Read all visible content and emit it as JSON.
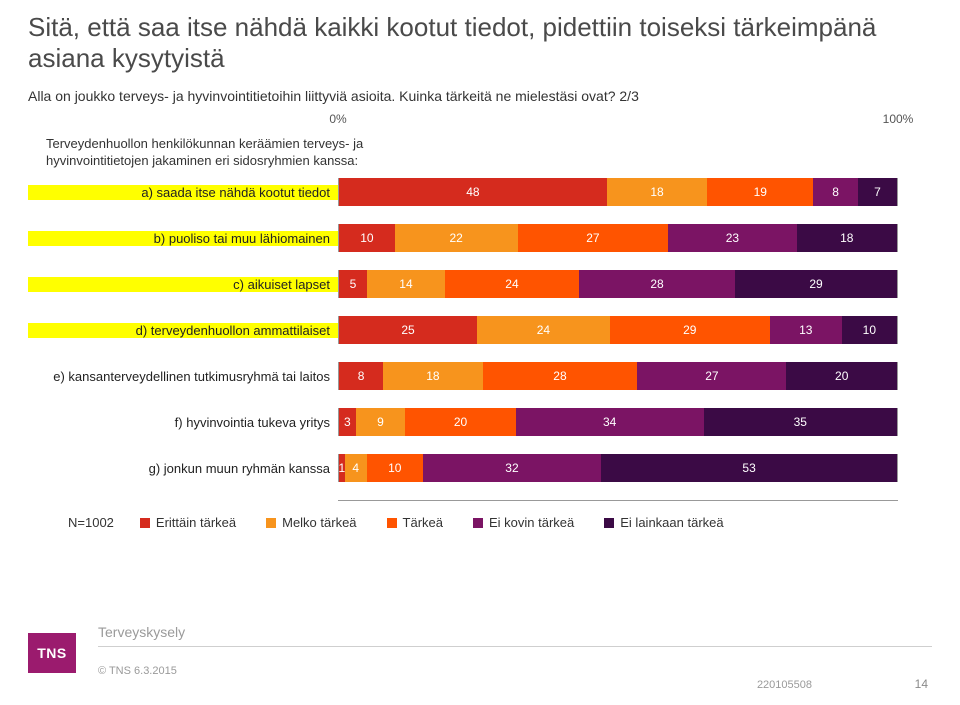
{
  "title": "Sitä, että saa itse nähdä kaikki kootut tiedot, pidettiin toiseksi tärkeimpänä asiana kysytyistä",
  "subtitle": "Alla on joukko terveys- ja hyvinvointitietoihin liittyviä asioita. Kuinka tärkeitä ne mielestäsi ovat? 2/3",
  "axis": {
    "min_label": "0%",
    "max_label": "100%"
  },
  "group_text": "Terveydenhuollon henkilökunnan keräämien terveys- ja hyvinvointitietojen jakaminen eri sidosryhmien kanssa:",
  "colors": {
    "c1": "#d52b1e",
    "c2": "#f7941d",
    "c3": "#ff5400",
    "c4": "#7b1464",
    "c5": "#3b0a45",
    "bg": "#ffffff",
    "grid": "#999999"
  },
  "rows": [
    {
      "label": "a) saada itse nähdä kootut tiedot",
      "highlighted": true,
      "values": [
        48,
        18,
        19,
        8,
        7
      ]
    },
    {
      "label": "b) puoliso tai muu lähiomainen",
      "highlighted": true,
      "values": [
        10,
        22,
        27,
        23,
        18
      ]
    },
    {
      "label": "c) aikuiset lapset",
      "highlighted": true,
      "values": [
        5,
        14,
        24,
        28,
        29
      ]
    },
    {
      "label": "d) terveydenhuollon ammattilaiset",
      "highlighted": true,
      "values": [
        25,
        24,
        29,
        13,
        10
      ]
    },
    {
      "label": "e) kansanterveydellinen tutkimusryhmä tai laitos",
      "highlighted": false,
      "values": [
        8,
        18,
        28,
        27,
        20
      ]
    },
    {
      "label": "f) hyvinvointia tukeva yritys",
      "highlighted": false,
      "values": [
        3,
        9,
        20,
        34,
        35
      ]
    },
    {
      "label": "g) jonkun muun ryhmän kanssa",
      "highlighted": false,
      "values": [
        1,
        4,
        10,
        32,
        53
      ]
    }
  ],
  "n_label": "N=1002",
  "legend": [
    {
      "label": "Erittäin tärkeä",
      "color": "#d52b1e"
    },
    {
      "label": "Melko tärkeä",
      "color": "#f7941d"
    },
    {
      "label": "Tärkeä",
      "color": "#ff5400"
    },
    {
      "label": "Ei kovin tärkeä",
      "color": "#7b1464"
    },
    {
      "label": "Ei lainkaan tärkeä",
      "color": "#3b0a45"
    }
  ],
  "footer": {
    "survey_name": "Terveyskysely",
    "logo_text": "TNS",
    "copyright": "© TNS 6.3.2015",
    "doc_number": "220105508",
    "page_number": "14"
  }
}
